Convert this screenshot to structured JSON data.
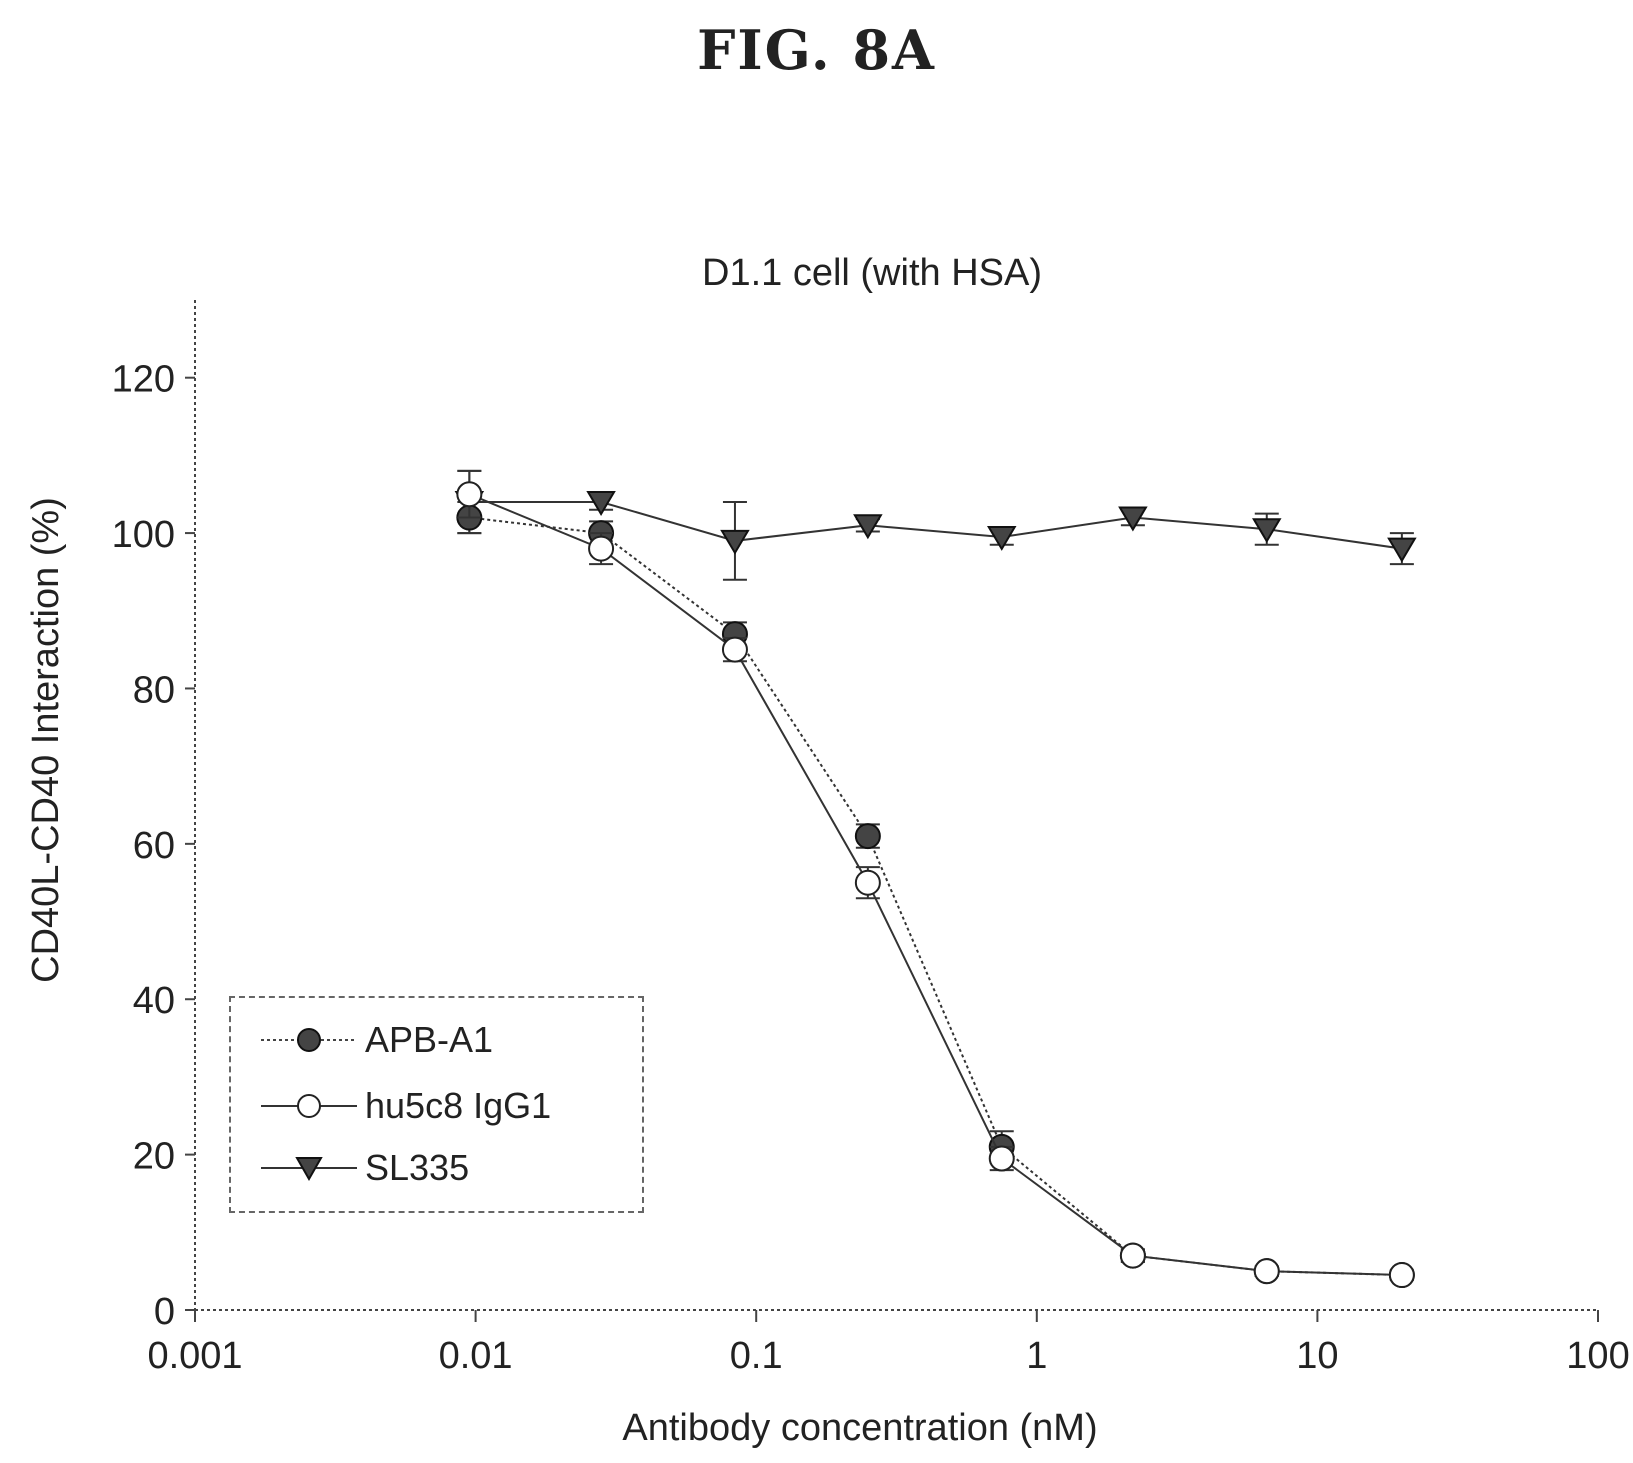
{
  "figure_label": "FIG.  8A",
  "chart_data": {
    "type": "line",
    "title": "D1.1 cell (with HSA)",
    "xlabel": "Antibody concentration (nM)",
    "ylabel": "CD40L-CD40 Interaction (%)",
    "xscale": "log",
    "xlim": [
      0.001,
      100
    ],
    "ylim": [
      0,
      130
    ],
    "xticks": [
      0.001,
      0.01,
      0.1,
      1,
      10,
      100
    ],
    "xtick_labels": [
      "0.001",
      "0.01",
      "0.1",
      "1",
      "10",
      "100"
    ],
    "yticks": [
      0,
      20,
      40,
      60,
      80,
      100,
      120
    ],
    "ytick_labels": [
      "0",
      "20",
      "40",
      "60",
      "80",
      "100",
      "120"
    ],
    "legend_position": "bottom-left",
    "grid": false,
    "series": [
      {
        "name": "APB-A1",
        "marker": "filled-circle",
        "line": "dotted",
        "x": [
          0.0095,
          0.028,
          0.084,
          0.25,
          0.75,
          2.2,
          6.6,
          20
        ],
        "y": [
          102,
          100,
          87,
          61,
          21,
          7,
          5,
          4.5
        ],
        "error": [
          2,
          1.5,
          1.5,
          1.5,
          2,
          0.8,
          0.6,
          0.6
        ]
      },
      {
        "name": "hu5c8 IgG1",
        "marker": "open-circle",
        "line": "solid",
        "x": [
          0.0095,
          0.028,
          0.084,
          0.25,
          0.75,
          2.2,
          6.6,
          20
        ],
        "y": [
          105,
          98,
          85,
          55,
          19.5,
          7,
          5,
          4.5
        ],
        "error": [
          3,
          2,
          1.5,
          2,
          1.5,
          0.8,
          0.6,
          0.6
        ]
      },
      {
        "name": "SL335",
        "marker": "filled-triangle-down",
        "line": "solid",
        "x": [
          0.0095,
          0.028,
          0.084,
          0.25,
          0.75,
          2.2,
          6.6,
          20
        ],
        "y": [
          104,
          104,
          99,
          101,
          99.5,
          102,
          100.5,
          98
        ],
        "error": [
          4,
          1,
          5,
          0.8,
          1,
          1,
          2,
          2
        ]
      }
    ]
  }
}
